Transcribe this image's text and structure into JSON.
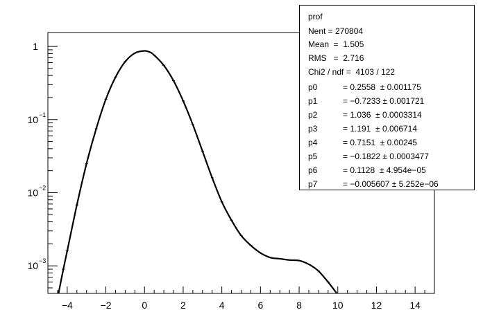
{
  "chart_data": {
    "type": "line",
    "title": "",
    "xlabel": "",
    "ylabel": "",
    "xlim": [
      -5,
      15
    ],
    "ylim": [
      0.00042,
      1.55
    ],
    "yscale": "log",
    "grid": false,
    "x_ticks": [
      -4,
      -2,
      0,
      2,
      4,
      6,
      8,
      10,
      12,
      14
    ],
    "x_tick_labels": [
      "-4",
      "-2",
      "0",
      "2",
      "4",
      "6",
      "8",
      "10",
      "12",
      "14"
    ],
    "y_ticks": [
      1,
      0.1,
      0.01,
      0.001
    ],
    "y_tick_labels": [
      {
        "base": "1",
        "exp": ""
      },
      {
        "base": "10",
        "exp": "-1"
      },
      {
        "base": "10",
        "exp": "-2"
      },
      {
        "base": "10",
        "exp": "-3"
      }
    ],
    "series": [
      {
        "x": [
          -4.45,
          -4.2,
          -4.0,
          -3.5,
          -3.0,
          -2.5,
          -2.0,
          -1.5,
          -1.0,
          -0.5,
          0.0,
          0.3,
          0.5,
          1.0,
          1.5,
          2.0,
          2.5,
          3.0,
          3.5,
          4.0,
          4.5,
          5.0,
          5.5,
          6.0,
          6.5,
          7.0,
          7.5,
          8.0,
          8.5,
          9.0,
          9.5,
          9.95
        ],
        "y": [
          0.00042,
          0.0009,
          0.0016,
          0.0068,
          0.025,
          0.075,
          0.19,
          0.38,
          0.62,
          0.81,
          0.87,
          0.83,
          0.76,
          0.55,
          0.34,
          0.18,
          0.085,
          0.037,
          0.016,
          0.0075,
          0.0042,
          0.0026,
          0.0019,
          0.0015,
          0.0013,
          0.00125,
          0.0012,
          0.00118,
          0.00105,
          0.00085,
          0.0006,
          0.00042
        ]
      }
    ]
  },
  "stats": {
    "title": "prof",
    "entries": [
      {
        "label": "Nent = 270804"
      },
      {
        "label": "Mean  =  1.505"
      },
      {
        "label": "RMS   =  2.716"
      },
      {
        "label": "Chi2 / ndf =  4103 / 122"
      }
    ],
    "params": [
      {
        "name": "p0",
        "value": "= 0.2558  ± 0.001175"
      },
      {
        "name": "p1",
        "value": "= −0.7233 ± 0.001721"
      },
      {
        "name": "p2",
        "value": "= 1.036  ± 0.0003314"
      },
      {
        "name": "p3",
        "value": "= 1.191  ± 0.006714"
      },
      {
        "name": "p4",
        "value": "= 0.7151  ± 0.00245"
      },
      {
        "name": "p5",
        "value": "= −0.1822 ± 0.0003477"
      },
      {
        "name": "p6",
        "value": "= 0.1128  ± 4.954e−05"
      },
      {
        "name": "p7",
        "value": "= −0.005607 ± 5.252e−06"
      }
    ]
  }
}
